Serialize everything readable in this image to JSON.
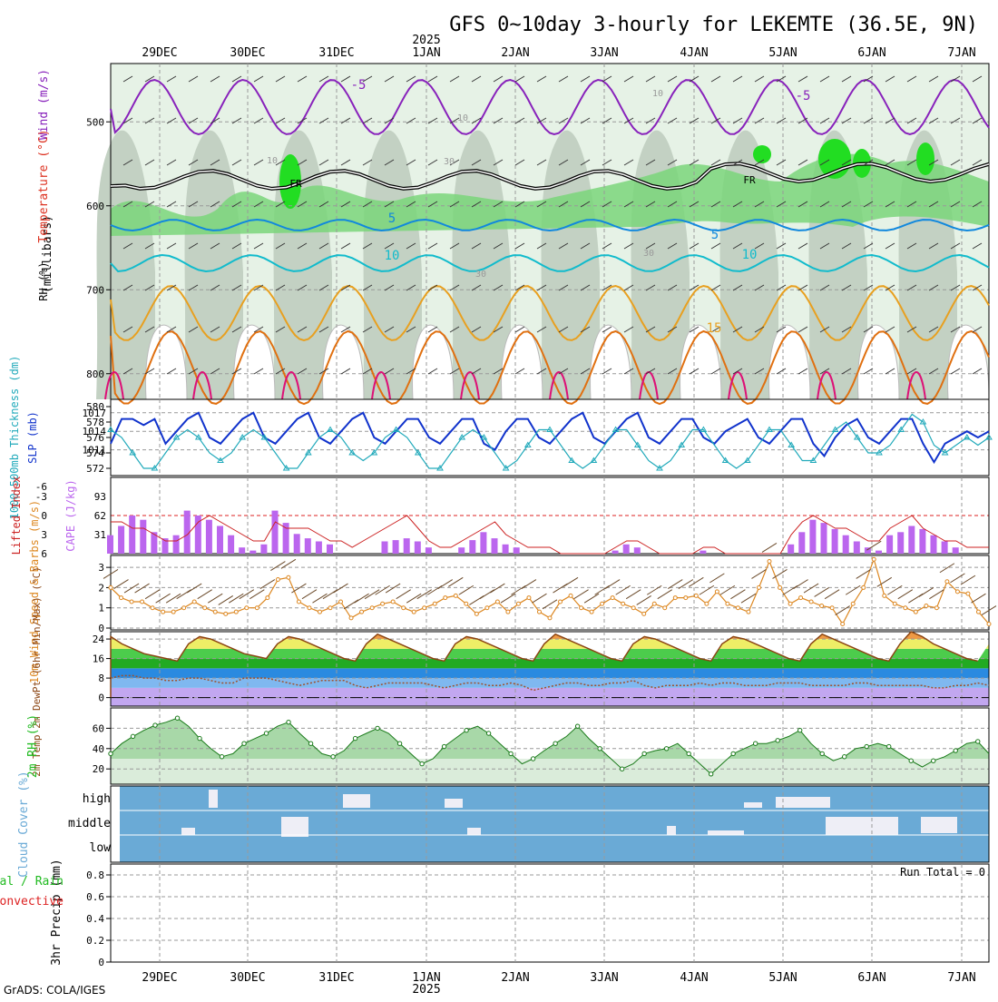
{
  "title": "GFS 0~10day 3-hourly for LEKEMTE (36.5E, 9N)",
  "year_label": "2025",
  "footer": "GrADS: COLA/IGES",
  "dates": [
    "29DEC",
    "30DEC",
    "31DEC",
    "1JAN",
    "2JAN",
    "3JAN",
    "4JAN",
    "5JAN",
    "6JAN",
    "7JAN"
  ],
  "colors": {
    "rh": "#22bb22",
    "temp": "#dd3322",
    "wind": "#8822bb",
    "slp": "#1133cc",
    "thick": "#22aabb",
    "cape": "#bb66ee",
    "li": "#cc2222",
    "wspd": "#dd8822",
    "rh2m": "#22bb22",
    "cloud": "#6aaad6",
    "precip": "#22bb22",
    "conv": "#dd2222"
  },
  "chart_data": [
    {
      "type": "heatmap",
      "name": "upper-air",
      "ylabel_left": [
        "RH (%)",
        "Temperature (°C)",
        "Wind (m/s)"
      ],
      "ylabel_units": "(millibars)",
      "y_ticks": [
        500,
        600,
        700,
        800
      ],
      "ylim": [
        850,
        450
      ],
      "contour_labels": [
        "-5",
        "FR",
        "-5",
        "-5",
        "FR",
        "5",
        "5",
        "10",
        "10",
        "15",
        "10",
        "10",
        "30",
        "30",
        "30",
        "10"
      ]
    },
    {
      "type": "line",
      "name": "slp-thickness",
      "ylabel": "SLP (mb)",
      "ylabel2": "1000-500mb Thickness (dm)",
      "left_ticks": [
        572,
        574,
        576,
        578,
        580
      ],
      "right_ticks": [
        1011,
        1014,
        1017
      ],
      "series": [
        {
          "name": "SLP (mb)",
          "values": [
            1012,
            1016,
            1016,
            1015,
            1016,
            1012,
            1014,
            1016,
            1017,
            1013,
            1012,
            1014,
            1016,
            1017,
            1013,
            1012,
            1014,
            1016,
            1017,
            1013,
            1012,
            1014,
            1016,
            1017,
            1013,
            1012,
            1014,
            1016,
            1016,
            1013,
            1012,
            1014,
            1016,
            1016,
            1012,
            1011,
            1014,
            1016,
            1016,
            1013,
            1012,
            1014,
            1016,
            1017,
            1013,
            1012,
            1014,
            1016,
            1017,
            1013,
            1012,
            1014,
            1016,
            1016,
            1013,
            1012,
            1014,
            1015,
            1016,
            1013,
            1012,
            1014,
            1016,
            1016,
            1012,
            1010,
            1013,
            1015,
            1016,
            1013,
            1012,
            1014,
            1016,
            1016,
            1012,
            1009,
            1012,
            1013,
            1014,
            1013,
            1014
          ]
        },
        {
          "name": "Thickness (dm)",
          "values": [
            577,
            576,
            574,
            572,
            572,
            574,
            576,
            577,
            576,
            574,
            573,
            574,
            576,
            577,
            576,
            574,
            572,
            572,
            574,
            576,
            577,
            576,
            574,
            573,
            574,
            576,
            577,
            576,
            574,
            572,
            572,
            574,
            576,
            577,
            576,
            574,
            572,
            573,
            575,
            577,
            577,
            575,
            573,
            572,
            573,
            575,
            577,
            577,
            575,
            573,
            572,
            573,
            575,
            577,
            577,
            575,
            573,
            572,
            573,
            575,
            577,
            577,
            575,
            573,
            573,
            575,
            577,
            578,
            576,
            574,
            574,
            575,
            577,
            579,
            578,
            575,
            574,
            575,
            576,
            575,
            576
          ]
        }
      ]
    },
    {
      "type": "bar",
      "name": "cape-li",
      "ylabel": "CAPE (J/kg)",
      "ylabel2": "Lifted Index",
      "cape_ticks": [
        31,
        62,
        93
      ],
      "li_ticks": [
        -3,
        0,
        3,
        6
      ],
      "li_top": "-6",
      "cape": [
        30,
        45,
        62,
        55,
        35,
        25,
        30,
        70,
        62,
        55,
        45,
        30,
        10,
        5,
        15,
        70,
        50,
        32,
        25,
        20,
        15,
        0,
        0,
        0,
        0,
        20,
        22,
        25,
        20,
        10,
        0,
        0,
        10,
        22,
        35,
        25,
        15,
        10,
        0,
        0,
        0,
        0,
        0,
        0,
        0,
        0,
        5,
        15,
        10,
        0,
        0,
        0,
        0,
        0,
        5,
        0,
        0,
        0,
        0,
        0,
        0,
        0,
        15,
        35,
        55,
        50,
        40,
        30,
        20,
        10,
        5,
        30,
        35,
        45,
        40,
        30,
        20,
        10,
        0,
        0,
        0
      ],
      "li": [
        1,
        1,
        2,
        2,
        3,
        4,
        4,
        3,
        1,
        0,
        1,
        2,
        3,
        4,
        4,
        1,
        2,
        2,
        2,
        3,
        4,
        4,
        5,
        4,
        3,
        2,
        1,
        0,
        2,
        4,
        5,
        5,
        4,
        3,
        2,
        1,
        3,
        4,
        5,
        5,
        5,
        6,
        6,
        6,
        6,
        6,
        5,
        4,
        4,
        5,
        6,
        6,
        6,
        6,
        5,
        5,
        6,
        6,
        6,
        6,
        6,
        6,
        3,
        1,
        0,
        1,
        2,
        2,
        3,
        4,
        4,
        2,
        1,
        0,
        2,
        3,
        4,
        4,
        5,
        5,
        5
      ]
    },
    {
      "type": "line",
      "name": "wind10m",
      "ylabel": "10m Wind Speed & Barbs (m/s)",
      "y_ticks": [
        0,
        1,
        2,
        3
      ],
      "values": [
        2.0,
        1.5,
        1.3,
        1.3,
        1.0,
        0.8,
        0.8,
        1.0,
        1.3,
        1.0,
        0.8,
        0.7,
        0.8,
        1.0,
        1.0,
        1.5,
        2.4,
        2.5,
        1.3,
        1.0,
        0.8,
        1.0,
        1.3,
        0.5,
        0.8,
        1.0,
        1.2,
        1.3,
        1.0,
        0.8,
        1.0,
        1.2,
        1.5,
        1.6,
        1.2,
        0.7,
        1.0,
        1.3,
        0.8,
        1.2,
        1.5,
        0.8,
        0.5,
        1.3,
        1.6,
        1.0,
        0.8,
        1.2,
        1.5,
        1.2,
        1.0,
        0.7,
        1.2,
        1.0,
        1.5,
        1.5,
        1.6,
        1.2,
        1.8,
        1.2,
        1.0,
        0.8,
        2.0,
        3.3,
        2.0,
        1.2,
        1.5,
        1.3,
        1.1,
        1.0,
        0.2,
        1.2,
        2.0,
        3.4,
        1.6,
        1.2,
        1.0,
        0.8,
        1.1,
        1.0,
        2.3,
        1.8,
        1.7,
        0.8,
        0.2
      ]
    },
    {
      "type": "area",
      "name": "temp2m",
      "ylabel": "2m Temp 2m DewPt (6hr Min/Max) (°C)",
      "y_ticks": [
        0,
        8,
        16,
        24
      ],
      "temp": [
        25,
        22,
        20,
        18,
        17,
        16,
        15,
        22,
        25,
        24,
        22,
        20,
        18,
        17,
        16,
        22,
        25,
        24,
        22,
        20,
        18,
        16,
        15,
        22,
        26,
        24,
        22,
        20,
        18,
        16,
        15,
        22,
        25,
        24,
        22,
        20,
        18,
        16,
        15,
        22,
        26,
        24,
        22,
        20,
        18,
        16,
        15,
        22,
        25,
        24,
        22,
        20,
        18,
        16,
        15,
        22,
        25,
        24,
        22,
        20,
        18,
        16,
        15,
        22,
        26,
        24,
        22,
        20,
        18,
        16,
        15,
        22,
        27,
        25,
        22,
        20,
        18,
        16,
        15,
        22
      ],
      "dewpt": [
        8,
        9,
        9,
        8,
        8,
        7,
        7,
        8,
        8,
        7,
        6,
        6,
        8,
        8,
        8,
        7,
        6,
        5,
        6,
        7,
        7,
        7,
        5,
        4,
        5,
        6,
        6,
        6,
        6,
        5,
        4,
        5,
        6,
        6,
        5,
        5,
        6,
        5,
        3,
        4,
        5,
        6,
        6,
        5,
        5,
        6,
        6,
        7,
        5,
        4,
        5,
        5,
        5,
        6,
        5,
        6,
        6,
        5,
        5,
        5,
        6,
        6,
        6,
        5,
        5,
        5,
        5,
        6,
        6,
        5,
        5,
        5,
        5,
        5,
        4,
        4,
        5,
        5,
        6,
        5
      ]
    },
    {
      "type": "area",
      "name": "rh2m",
      "ylabel": "2m RH (%)",
      "y_ticks": [
        20,
        40,
        60
      ],
      "values": [
        35,
        45,
        52,
        58,
        63,
        66,
        70,
        62,
        50,
        40,
        32,
        35,
        45,
        50,
        55,
        62,
        66,
        55,
        45,
        35,
        32,
        38,
        50,
        55,
        60,
        55,
        45,
        35,
        25,
        30,
        42,
        50,
        58,
        62,
        55,
        45,
        35,
        25,
        30,
        38,
        45,
        52,
        62,
        50,
        40,
        30,
        20,
        25,
        35,
        38,
        40,
        45,
        35,
        25,
        15,
        25,
        35,
        40,
        45,
        45,
        48,
        52,
        58,
        45,
        35,
        28,
        32,
        40,
        42,
        45,
        42,
        35,
        28,
        22,
        28,
        32,
        38,
        45,
        47,
        35
      ]
    },
    {
      "type": "bar",
      "name": "cloud-cover",
      "ylabel": "Cloud Cover (%)",
      "levels": [
        "high",
        "middle",
        "low"
      ]
    },
    {
      "type": "bar",
      "name": "precip",
      "ylabel": "3hr Precip (mm)",
      "series_labels": [
        "Total / Rain",
        "Convective"
      ],
      "y_ticks": [
        0,
        0.2,
        0.4,
        0.6,
        0.8
      ],
      "values": [],
      "run_total": "Run Total = 0"
    }
  ]
}
